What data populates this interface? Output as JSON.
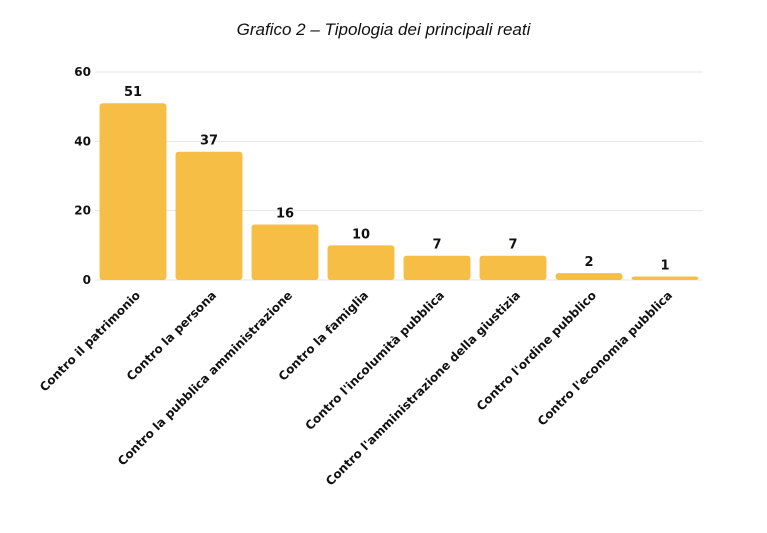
{
  "chart_data": {
    "type": "bar",
    "title": "Grafico 2 – Tipologia dei principali reati",
    "xlabel": "",
    "ylabel": "",
    "ylim": [
      0,
      60
    ],
    "yticks": [
      0,
      20,
      40,
      60
    ],
    "grid": true,
    "bar_color": "#F6BE45",
    "categories": [
      "Contro il patrimonio",
      "Contro la persona",
      "Contro la pubblica amministrazione",
      "Contro la famiglia",
      "Contro l'incolumità pubblica",
      "Contro l'amministrazione della giustizia",
      "Contro l'ordine pubblico",
      "Contro l'economia pubblica"
    ],
    "values": [
      51,
      37,
      16,
      10,
      7,
      7,
      2,
      1
    ]
  }
}
